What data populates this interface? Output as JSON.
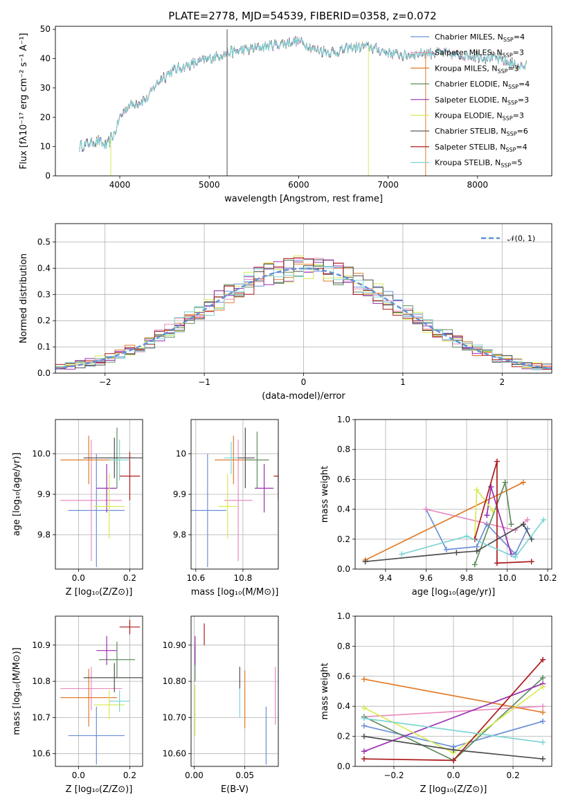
{
  "figure_title": "PLATE=2778, MJD=54539, FIBERID=0358, z=0.072",
  "colors": {
    "Chabrier MILES": "#6a8fd8",
    "Salpeter MILES": "#e88cbf",
    "Kroupa MILES": "#e07b2a",
    "Chabrier ELODIE": "#5e8c5e",
    "Salpeter ELODIE": "#9a2fb0",
    "Kroupa ELODIE": "#d7ea53",
    "Chabrier STELIB": "#4d4d4d",
    "Salpeter STELIB": "#aa1a1a",
    "Kroupa STELIB": "#7fd4d4",
    "normal_curve": "#5f8fd8"
  },
  "chart_data": [
    {
      "id": "spectrum",
      "type": "line",
      "title": "",
      "xlabel": "wavelength [Angstrom, rest frame]",
      "ylabel": "Flux [fλ10⁻¹⁷ erg cm⁻² s⁻¹ A⁻¹]",
      "xlim": [
        3280,
        8830
      ],
      "ylim": [
        0,
        51
      ],
      "xticks": [
        4000,
        5000,
        6000,
        7000,
        8000
      ],
      "yticks": [
        0,
        10,
        20,
        30,
        40,
        50
      ],
      "grid": false,
      "legend": "top-right",
      "legend_entries": [
        {
          "base": "Chabrier MILES, N",
          "sub": "SSP",
          "tail": "=4"
        },
        {
          "base": "Salpeter MILES, N",
          "sub": "SSP",
          "tail": "=3"
        },
        {
          "base": "Kroupa MILES, N",
          "sub": "SSP",
          "tail": "=3"
        },
        {
          "base": "Chabrier ELODIE, N",
          "sub": "SSP",
          "tail": "=4"
        },
        {
          "base": "Salpeter ELODIE, N",
          "sub": "SSP",
          "tail": "=3"
        },
        {
          "base": "Kroupa ELODIE, N",
          "sub": "SSP",
          "tail": "=3"
        },
        {
          "base": "Chabrier STELIB, N",
          "sub": "SSP",
          "tail": "=6"
        },
        {
          "base": "Salpeter STELIB, N",
          "sub": "SSP",
          "tail": "=4"
        },
        {
          "base": "Kroupa STELIB, N",
          "sub": "SSP",
          "tail": "=5"
        }
      ],
      "continuum": {
        "wavelength": [
          3550,
          3650,
          3750,
          3850,
          3950,
          4000,
          4100,
          4200,
          4300,
          4400,
          4500,
          4600,
          4800,
          5000,
          5200,
          5400,
          5600,
          5800,
          6000,
          6200,
          6400,
          6600,
          6800,
          7000,
          7200,
          7400,
          7600,
          7800,
          8000,
          8200,
          8400,
          8550
        ],
        "flux": [
          10,
          11,
          12,
          10,
          15,
          20,
          24,
          25,
          26,
          31,
          34,
          36,
          38,
          40,
          42,
          43,
          44,
          45,
          46,
          43,
          42,
          44,
          44,
          42,
          41,
          42,
          42,
          41,
          41,
          40,
          38,
          37
        ]
      },
      "spikes": [
        {
          "wavelength": 3900,
          "series": "Kroupa ELODIE",
          "to": 0
        },
        {
          "wavelength": 5200,
          "series": "Chabrier STELIB",
          "to": 0
        },
        {
          "wavelength": 6780,
          "series": "Kroupa ELODIE",
          "to": 0
        },
        {
          "wavelength": 7420,
          "series": "Kroupa MILES",
          "to": 0
        }
      ]
    },
    {
      "id": "residuals",
      "type": "histogram",
      "title": "",
      "xlabel": "(data-model)/error",
      "ylabel": "Normed distribution",
      "xlim": [
        -2.5,
        2.5
      ],
      "ylim": [
        0,
        0.57
      ],
      "xticks": [
        -2,
        -1,
        0,
        1,
        2
      ],
      "yticks": [
        0.0,
        0.1,
        0.2,
        0.3,
        0.4,
        0.5
      ],
      "bin_width": 0.1,
      "grid": true,
      "legend": "top-right",
      "legend_label": "𝒩(0, 1)"
    },
    {
      "id": "age_vs_Z",
      "type": "errorbar",
      "xlabel": "Z [log₁₀(Z/Z⊙)]",
      "ylabel": "age  [log₁₀(age/yr)]",
      "xlim": [
        -0.09,
        0.25
      ],
      "ylim": [
        9.715,
        10.085
      ],
      "xticks": [
        0.0,
        0.2
      ],
      "yticks": [
        9.8,
        9.9,
        10.0
      ],
      "grid": true,
      "points": [
        {
          "series": "Chabrier MILES",
          "x": 0.07,
          "y": 9.86,
          "xerr": 0.11,
          "yerr": 0.14
        },
        {
          "series": "Salpeter MILES",
          "x": 0.05,
          "y": 9.885,
          "xerr": 0.12,
          "yerr": 0.15
        },
        {
          "series": "Kroupa MILES",
          "x": 0.04,
          "y": 9.985,
          "xerr": 0.11,
          "yerr": 0.06
        },
        {
          "series": "Chabrier ELODIE",
          "x": 0.15,
          "y": 9.99,
          "xerr": 0.07,
          "yerr": 0.075
        },
        {
          "series": "Salpeter ELODIE",
          "x": 0.11,
          "y": 9.915,
          "xerr": 0.04,
          "yerr": 0.06
        },
        {
          "series": "Kroupa ELODIE",
          "x": 0.12,
          "y": 9.87,
          "xerr": 0.06,
          "yerr": 0.08
        },
        {
          "series": "Chabrier STELIB",
          "x": 0.14,
          "y": 9.99,
          "xerr": 0.12,
          "yerr": 0.05
        },
        {
          "series": "Salpeter STELIB",
          "x": 0.2,
          "y": 9.945,
          "xerr": 0.04,
          "yerr": 0.06
        },
        {
          "series": "Kroupa STELIB",
          "x": 0.16,
          "y": 9.985,
          "xerr": 0.04,
          "yerr": 0.05
        }
      ]
    },
    {
      "id": "age_vs_mass",
      "type": "errorbar",
      "xlabel": "mass [log₁₀(M/M⊙)]",
      "ylabel": "",
      "xlim": [
        10.58,
        10.95
      ],
      "ylim": [
        9.715,
        10.085
      ],
      "xticks": [
        10.6,
        10.8
      ],
      "yticks": [
        9.8,
        9.9,
        10.0
      ],
      "grid": true,
      "points": [
        {
          "series": "Chabrier MILES",
          "x": 10.65,
          "y": 9.86,
          "xerr": 0.08,
          "yerr": 0.14
        },
        {
          "series": "Salpeter MILES",
          "x": 10.78,
          "y": 9.885,
          "xerr": 0.06,
          "yerr": 0.15
        },
        {
          "series": "Kroupa MILES",
          "x": 10.76,
          "y": 9.985,
          "xerr": 0.08,
          "yerr": 0.06
        },
        {
          "series": "Chabrier ELODIE",
          "x": 10.86,
          "y": 9.985,
          "xerr": 0.05,
          "yerr": 0.07
        },
        {
          "series": "Salpeter ELODIE",
          "x": 10.89,
          "y": 9.915,
          "xerr": 0.04,
          "yerr": 0.06
        },
        {
          "series": "Kroupa ELODIE",
          "x": 10.735,
          "y": 9.87,
          "xerr": 0.04,
          "yerr": 0.08
        },
        {
          "series": "Chabrier STELIB",
          "x": 10.81,
          "y": 9.99,
          "xerr": 0.04,
          "yerr": 0.075
        },
        {
          "series": "Salpeter STELIB",
          "x": 10.95,
          "y": 9.945,
          "xerr": 0.02,
          "yerr": 0.06
        },
        {
          "series": "Kroupa STELIB",
          "x": 10.75,
          "y": 9.99,
          "xerr": 0.03,
          "yerr": 0.04
        }
      ]
    },
    {
      "id": "weight_vs_age",
      "type": "line",
      "xlabel": "age  [log₁₀(age/yr)]",
      "ylabel": "mass weight",
      "xlim": [
        9.25,
        10.22
      ],
      "ylim": [
        0,
        1
      ],
      "xticks": [
        9.4,
        9.6,
        9.8,
        10.0,
        10.2
      ],
      "yticks": [
        0.0,
        0.2,
        0.4,
        0.6,
        0.8,
        1.0
      ],
      "grid": true,
      "series": [
        {
          "name": "Chabrier MILES",
          "x": [
            9.6,
            9.7,
            9.85,
            9.9,
            10.04,
            10.1
          ],
          "y": [
            0.4,
            0.13,
            0.15,
            0.3,
            0.1,
            0.27
          ]
        },
        {
          "name": "Salpeter MILES",
          "x": [
            9.6,
            10.04,
            10.1
          ],
          "y": [
            0.4,
            0.26,
            0.33
          ]
        },
        {
          "name": "Kroupa MILES",
          "x": [
            9.3,
            10.08
          ],
          "y": [
            0.06,
            0.58
          ]
        },
        {
          "name": "Chabrier ELODIE",
          "x": [
            9.84,
            9.99,
            10.02
          ],
          "y": [
            0.03,
            0.58,
            0.3
          ]
        },
        {
          "name": "Salpeter ELODIE",
          "x": [
            9.9,
            9.92,
            10.02
          ],
          "y": [
            0.36,
            0.55,
            0.1
          ]
        },
        {
          "name": "Kroupa ELODIE",
          "x": [
            9.84,
            9.85,
            9.93
          ],
          "y": [
            0.2,
            0.53,
            0.39
          ]
        },
        {
          "name": "Chabrier STELIB",
          "x": [
            9.3,
            9.75,
            9.85,
            10.08,
            10.12
          ],
          "y": [
            0.05,
            0.11,
            0.12,
            0.3,
            0.2
          ]
        },
        {
          "name": "Salpeter STELIB",
          "x": [
            9.84,
            9.95,
            9.95,
            10.12
          ],
          "y": [
            0.2,
            0.72,
            0.04,
            0.05
          ]
        },
        {
          "name": "Kroupa STELIB",
          "x": [
            9.48,
            9.8,
            10.04,
            10.18
          ],
          "y": [
            0.1,
            0.22,
            0.08,
            0.33
          ]
        }
      ]
    },
    {
      "id": "mass_vs_Z",
      "type": "errorbar",
      "xlabel": "Z [log₁₀(Z/Z⊙)]",
      "ylabel": "mass [log₁₀(M/M⊙)]",
      "xlim": [
        -0.09,
        0.25
      ],
      "ylim": [
        10.565,
        10.98
      ],
      "xticks": [
        0.0,
        0.2
      ],
      "yticks": [
        10.6,
        10.7,
        10.8,
        10.9
      ],
      "grid": true,
      "points": [
        {
          "series": "Chabrier MILES",
          "x": 0.07,
          "y": 10.65,
          "xerr": 0.11,
          "yerr": 0.08
        },
        {
          "series": "Salpeter MILES",
          "x": 0.05,
          "y": 10.78,
          "xerr": 0.12,
          "yerr": 0.06
        },
        {
          "series": "Kroupa MILES",
          "x": 0.04,
          "y": 10.755,
          "xerr": 0.11,
          "yerr": 0.08
        },
        {
          "series": "Chabrier ELODIE",
          "x": 0.15,
          "y": 10.86,
          "xerr": 0.07,
          "yerr": 0.05
        },
        {
          "series": "Salpeter ELODIE",
          "x": 0.11,
          "y": 10.885,
          "xerr": 0.04,
          "yerr": 0.04
        },
        {
          "series": "Kroupa ELODIE",
          "x": 0.12,
          "y": 10.735,
          "xerr": 0.06,
          "yerr": 0.04
        },
        {
          "series": "Chabrier STELIB",
          "x": 0.14,
          "y": 10.81,
          "xerr": 0.12,
          "yerr": 0.04
        },
        {
          "series": "Salpeter STELIB",
          "x": 0.2,
          "y": 10.95,
          "xerr": 0.04,
          "yerr": 0.02
        },
        {
          "series": "Kroupa STELIB",
          "x": 0.16,
          "y": 10.745,
          "xerr": 0.04,
          "yerr": 0.03
        }
      ]
    },
    {
      "id": "mass_vs_ebv",
      "type": "errorbar",
      "xlabel": "E(B-V)",
      "ylabel": "",
      "xlim": [
        -0.003,
        0.083
      ],
      "ylim": [
        10.565,
        10.98
      ],
      "xticks": [
        0.0,
        0.05
      ],
      "yticks": [
        10.6,
        10.7,
        10.8,
        10.9
      ],
      "grid": true,
      "points": [
        {
          "series": "Chabrier MILES",
          "x": 0.071,
          "y": 10.65,
          "xerr": 0,
          "yerr": 0.08
        },
        {
          "series": "Salpeter MILES",
          "x": 0.08,
          "y": 10.76,
          "xerr": 0,
          "yerr": 0.08
        },
        {
          "series": "Kroupa MILES",
          "x": 0.05,
          "y": 10.75,
          "xerr": 0,
          "yerr": 0.08
        },
        {
          "series": "Chabrier ELODIE",
          "x": 0.001,
          "y": 10.85,
          "xerr": 0,
          "yerr": 0.05
        },
        {
          "series": "Salpeter ELODIE",
          "x": 0.001,
          "y": 10.885,
          "xerr": 0,
          "yerr": 0.04
        },
        {
          "series": "Kroupa ELODIE",
          "x": 0.001,
          "y": 10.72,
          "xerr": 0,
          "yerr": 0.07
        },
        {
          "series": "Chabrier STELIB",
          "x": 0.045,
          "y": 10.81,
          "xerr": 0,
          "yerr": 0.03
        },
        {
          "series": "Salpeter STELIB",
          "x": 0.01,
          "y": 10.93,
          "xerr": 0,
          "yerr": 0.03
        },
        {
          "series": "Kroupa STELIB",
          "x": 0.045,
          "y": 10.74,
          "xerr": 0,
          "yerr": 0.04
        }
      ]
    },
    {
      "id": "weight_vs_Z",
      "type": "line",
      "xlabel": "Z [log₁₀(Z/Z⊙)]",
      "ylabel": "mass weight",
      "xlim": [
        -0.33,
        0.33
      ],
      "ylim": [
        0,
        1
      ],
      "xticks": [
        -0.2,
        0.0,
        0.2
      ],
      "yticks": [
        0.0,
        0.2,
        0.4,
        0.6,
        0.8,
        1.0
      ],
      "grid": true,
      "series": [
        {
          "name": "Chabrier MILES",
          "x": [
            -0.3,
            0.0,
            0.3
          ],
          "y": [
            0.27,
            0.13,
            0.3
          ]
        },
        {
          "name": "Salpeter MILES",
          "x": [
            -0.3,
            0.3
          ],
          "y": [
            0.33,
            0.4
          ]
        },
        {
          "name": "Kroupa MILES",
          "x": [
            -0.3,
            0.3
          ],
          "y": [
            0.58,
            0.36
          ]
        },
        {
          "name": "Chabrier ELODIE",
          "x": [
            -0.3,
            0.0,
            0.3
          ],
          "y": [
            0.33,
            0.04,
            0.59
          ]
        },
        {
          "name": "Salpeter ELODIE",
          "x": [
            -0.3,
            0.3
          ],
          "y": [
            0.1,
            0.55
          ]
        },
        {
          "name": "Kroupa ELODIE",
          "x": [
            -0.3,
            0.0,
            0.3
          ],
          "y": [
            0.39,
            0.09,
            0.53
          ]
        },
        {
          "name": "Chabrier STELIB",
          "x": [
            -0.3,
            0.0,
            0.3
          ],
          "y": [
            0.2,
            0.11,
            0.05
          ]
        },
        {
          "name": "Salpeter STELIB",
          "x": [
            -0.3,
            0.0,
            0.3
          ],
          "y": [
            0.05,
            0.04,
            0.71
          ]
        },
        {
          "name": "Kroupa STELIB",
          "x": [
            -0.3,
            0.3
          ],
          "y": [
            0.32,
            0.16
          ]
        }
      ]
    }
  ]
}
